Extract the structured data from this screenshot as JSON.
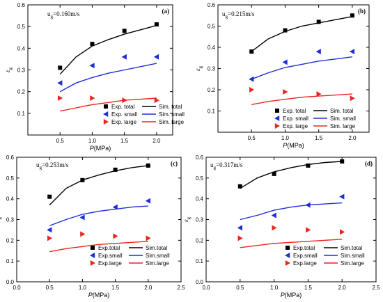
{
  "chart_data": [
    {
      "type": "scatter",
      "panel_label": "(a)",
      "annotation": "u",
      "annotation_sub": "g",
      "annotation_rest": "=0.160m/s",
      "xlabel": "P",
      "xlabel_unit": "(MPa)",
      "ylabel": "ε",
      "ylabel_sub": "g",
      "xlim": [
        0,
        2.25
      ],
      "ylim": [
        0,
        0.6
      ],
      "xticks": [
        "0.5",
        "1.0",
        "1.5",
        "2.0"
      ],
      "yticks": [
        "0.1",
        "0.2",
        "0.3",
        "0.4",
        "0.5",
        "0.6"
      ],
      "legend": {
        "exp": [
          "Exp. total",
          "Exp. small",
          "Exp. large"
        ],
        "sim": [
          "Sim. total",
          "Sim. small",
          "Sim. large"
        ]
      },
      "series": [
        {
          "name": "Exp. total",
          "kind": "points",
          "marker": "square",
          "color": "#000000",
          "x": [
            0.5,
            1.0,
            1.5,
            2.0
          ],
          "y": [
            0.31,
            0.42,
            0.48,
            0.51
          ]
        },
        {
          "name": "Exp. small",
          "kind": "points",
          "marker": "tri-left",
          "color": "#1f2dd6",
          "x": [
            0.5,
            1.0,
            1.5,
            2.0
          ],
          "y": [
            0.24,
            0.32,
            0.36,
            0.36
          ]
        },
        {
          "name": "Exp. large",
          "kind": "points",
          "marker": "tri-right",
          "color": "#e8251f",
          "x": [
            0.5,
            1.0,
            1.5,
            2.0
          ],
          "y": [
            0.17,
            0.17,
            0.16,
            0.16
          ]
        },
        {
          "name": "Sim. total",
          "kind": "line",
          "color": "#000000",
          "x": [
            0.5,
            0.75,
            1.0,
            1.25,
            1.5,
            1.75,
            2.0
          ],
          "y": [
            0.28,
            0.36,
            0.41,
            0.44,
            0.465,
            0.485,
            0.505
          ]
        },
        {
          "name": "Sim. small",
          "kind": "line",
          "color": "#1f2dd6",
          "x": [
            0.5,
            0.75,
            1.0,
            1.25,
            1.5,
            1.75,
            2.0
          ],
          "y": [
            0.2,
            0.24,
            0.265,
            0.285,
            0.3,
            0.315,
            0.33
          ]
        },
        {
          "name": "Sim. large",
          "kind": "line",
          "color": "#e8251f",
          "x": [
            0.5,
            0.75,
            1.0,
            1.25,
            1.5,
            1.75,
            2.0
          ],
          "y": [
            0.11,
            0.125,
            0.14,
            0.15,
            0.16,
            0.165,
            0.17
          ]
        }
      ]
    },
    {
      "type": "scatter",
      "panel_label": "(b)",
      "annotation": "u",
      "annotation_sub": "g",
      "annotation_rest": "=0.215m/s",
      "xlabel": "P",
      "xlabel_unit": "(MPa)",
      "ylabel": "ε",
      "ylabel_sub": "g",
      "xlim": [
        0,
        2.25
      ],
      "ylim": [
        0,
        0.6
      ],
      "xticks": [
        "0.5",
        "1.0",
        "1.5",
        "2.0"
      ],
      "yticks": [
        "0.1",
        "0.2",
        "0.3",
        "0.4",
        "0.5",
        "0.6"
      ],
      "legend": {
        "exp": [
          "Exp. total",
          "Exp. small",
          "Exp. large"
        ],
        "sim": [
          "Sim. total",
          "Sim. small",
          "Sim. large"
        ]
      },
      "series": [
        {
          "name": "Exp. total",
          "kind": "points",
          "marker": "square",
          "color": "#000000",
          "x": [
            0.5,
            1.0,
            1.5,
            2.0
          ],
          "y": [
            0.38,
            0.48,
            0.52,
            0.55
          ]
        },
        {
          "name": "Exp. small",
          "kind": "points",
          "marker": "tri-left",
          "color": "#1f2dd6",
          "x": [
            0.5,
            1.0,
            1.5,
            2.0
          ],
          "y": [
            0.25,
            0.33,
            0.38,
            0.38
          ]
        },
        {
          "name": "Exp. large",
          "kind": "points",
          "marker": "tri-right",
          "color": "#e8251f",
          "x": [
            0.5,
            1.0,
            1.5,
            2.0
          ],
          "y": [
            0.2,
            0.19,
            0.18,
            0.16
          ]
        },
        {
          "name": "Sim. total",
          "kind": "line",
          "color": "#000000",
          "x": [
            0.5,
            0.75,
            1.0,
            1.25,
            1.5,
            1.75,
            2.0
          ],
          "y": [
            0.38,
            0.44,
            0.475,
            0.5,
            0.515,
            0.53,
            0.545
          ]
        },
        {
          "name": "Sim. small",
          "kind": "line",
          "color": "#1f2dd6",
          "x": [
            0.5,
            0.75,
            1.0,
            1.25,
            1.5,
            1.75,
            2.0
          ],
          "y": [
            0.25,
            0.28,
            0.305,
            0.32,
            0.335,
            0.345,
            0.355
          ]
        },
        {
          "name": "Sim. large",
          "kind": "line",
          "color": "#e8251f",
          "x": [
            0.5,
            0.75,
            1.0,
            1.25,
            1.5,
            1.75,
            2.0
          ],
          "y": [
            0.13,
            0.145,
            0.155,
            0.165,
            0.17,
            0.175,
            0.18
          ]
        }
      ]
    },
    {
      "type": "scatter",
      "panel_label": "(c)",
      "annotation": "u",
      "annotation_sub": "g",
      "annotation_rest": "=0.253m/s",
      "xlabel": "P",
      "xlabel_unit": "(MPa)",
      "ylabel": "ε",
      "ylabel_sub": "g",
      "xlim": [
        0,
        2.5
      ],
      "ylim": [
        0,
        0.6
      ],
      "xticks": [
        "0.0",
        "0.5",
        "1.0",
        "1.5",
        "2.0",
        "2.5"
      ],
      "yticks": [
        "0.0",
        "0.1",
        "0.2",
        "0.3",
        "0.4",
        "0.5",
        "0.6"
      ],
      "legend": {
        "exp": [
          "Exp.total",
          "Exp.small",
          "Exp.large"
        ],
        "sim": [
          "Sim.total",
          "Sim.small",
          "Sim.large"
        ]
      },
      "series": [
        {
          "name": "Exp.total",
          "kind": "points",
          "marker": "square",
          "color": "#000000",
          "x": [
            0.5,
            1.0,
            1.5,
            2.0
          ],
          "y": [
            0.41,
            0.49,
            0.54,
            0.56
          ]
        },
        {
          "name": "Exp.small",
          "kind": "points",
          "marker": "tri-left",
          "color": "#1f2dd6",
          "x": [
            0.5,
            1.0,
            1.5,
            2.0
          ],
          "y": [
            0.25,
            0.31,
            0.36,
            0.39
          ]
        },
        {
          "name": "Exp.large",
          "kind": "points",
          "marker": "tri-right",
          "color": "#e8251f",
          "x": [
            0.5,
            1.0,
            1.5,
            2.0
          ],
          "y": [
            0.21,
            0.23,
            0.22,
            0.21
          ]
        },
        {
          "name": "Sim.total",
          "kind": "line",
          "color": "#000000",
          "x": [
            0.5,
            0.75,
            1.0,
            1.25,
            1.5,
            1.75,
            2.0
          ],
          "y": [
            0.37,
            0.45,
            0.49,
            0.515,
            0.535,
            0.55,
            0.56
          ]
        },
        {
          "name": "Sim.small",
          "kind": "line",
          "color": "#1f2dd6",
          "x": [
            0.5,
            0.75,
            1.0,
            1.25,
            1.5,
            1.75,
            2.0
          ],
          "y": [
            0.27,
            0.3,
            0.325,
            0.34,
            0.35,
            0.36,
            0.365
          ]
        },
        {
          "name": "Sim.large",
          "kind": "line",
          "color": "#e8251f",
          "x": [
            0.5,
            0.75,
            1.0,
            1.25,
            1.5,
            1.75,
            2.0
          ],
          "y": [
            0.145,
            0.16,
            0.17,
            0.18,
            0.185,
            0.19,
            0.195
          ]
        }
      ]
    },
    {
      "type": "scatter",
      "panel_label": "(d)",
      "annotation": "u",
      "annotation_sub": "g",
      "annotation_rest": "=0.317m/s",
      "xlabel": "P",
      "xlabel_unit": "(MPa)",
      "ylabel": "ε",
      "ylabel_sub": "g",
      "xlim": [
        0,
        2.5
      ],
      "ylim": [
        0,
        0.6
      ],
      "xticks": [
        "0.0",
        "0.5",
        "1.0",
        "1.5",
        "2.0",
        "2.5"
      ],
      "yticks": [
        "0.0",
        "0.1",
        "0.2",
        "0.3",
        "0.4",
        "0.5",
        "0.6"
      ],
      "legend": {
        "exp": [
          "Exp.total",
          "Exp.small",
          "Exp.large"
        ],
        "sim": [
          "Sim.total",
          "Sim.small",
          "Sim.large"
        ]
      },
      "series": [
        {
          "name": "Exp.total",
          "kind": "points",
          "marker": "square",
          "color": "#000000",
          "x": [
            0.5,
            1.0,
            1.5,
            2.0
          ],
          "y": [
            0.46,
            0.52,
            0.56,
            0.58
          ]
        },
        {
          "name": "Exp.small",
          "kind": "points",
          "marker": "tri-left",
          "color": "#1f2dd6",
          "x": [
            0.5,
            1.0,
            1.5,
            2.0
          ],
          "y": [
            0.26,
            0.32,
            0.37,
            0.41
          ]
        },
        {
          "name": "Exp.large",
          "kind": "points",
          "marker": "tri-right",
          "color": "#e8251f",
          "x": [
            0.5,
            1.0,
            1.5,
            2.0
          ],
          "y": [
            0.21,
            0.26,
            0.25,
            0.24
          ]
        },
        {
          "name": "Sim.total",
          "kind": "line",
          "color": "#000000",
          "x": [
            0.5,
            0.75,
            1.0,
            1.25,
            1.5,
            1.75,
            2.0
          ],
          "y": [
            0.45,
            0.5,
            0.53,
            0.55,
            0.565,
            0.575,
            0.58
          ]
        },
        {
          "name": "Sim.small",
          "kind": "line",
          "color": "#1f2dd6",
          "x": [
            0.5,
            0.75,
            1.0,
            1.25,
            1.5,
            1.75,
            2.0
          ],
          "y": [
            0.3,
            0.32,
            0.345,
            0.36,
            0.37,
            0.375,
            0.38
          ]
        },
        {
          "name": "Sim.large",
          "kind": "line",
          "color": "#e8251f",
          "x": [
            0.5,
            0.75,
            1.0,
            1.25,
            1.5,
            1.75,
            2.0
          ],
          "y": [
            0.165,
            0.175,
            0.185,
            0.19,
            0.195,
            0.2,
            0.205
          ]
        }
      ]
    }
  ]
}
